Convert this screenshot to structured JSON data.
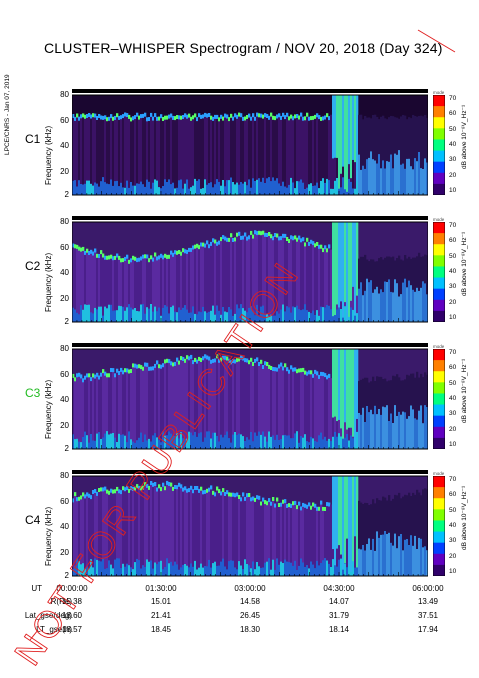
{
  "title": "CLUSTER–WHISPER Spectrogram / NOV 20, 2018 (Day 324)",
  "side_credit": "LPCE/CNRS - Jan 07, 2019",
  "watermark": "NOT FOR PUBLICATION",
  "colors": {
    "c3_label": "#22bb22",
    "watermark": "#e02020",
    "background": "#ffffff"
  },
  "chart_data": {
    "type": "heatmap",
    "panels": [
      {
        "spacecraft": "C1",
        "ylabel": "Frequency (kHz)",
        "yticks": [
          "80",
          "60",
          "40",
          "20",
          "2"
        ],
        "ylim": [
          2,
          80
        ]
      },
      {
        "spacecraft": "C2",
        "ylabel": "Frequency (kHz)",
        "yticks": [
          "80",
          "60",
          "40",
          "20",
          "2"
        ],
        "ylim": [
          2,
          80
        ]
      },
      {
        "spacecraft": "C3",
        "ylabel": "Frequency (kHz)",
        "yticks": [
          "80",
          "60",
          "40",
          "20",
          "2"
        ],
        "ylim": [
          2,
          80
        ]
      },
      {
        "spacecraft": "C4",
        "ylabel": "Frequency (kHz)",
        "yticks": [
          "80",
          "60",
          "40",
          "20",
          "2"
        ],
        "ylim": [
          2,
          80
        ]
      }
    ],
    "colorbar": {
      "label": "dB above 10⁻⁸V_Hz⁻¹",
      "ticks": [
        "70",
        "60",
        "50",
        "40",
        "30",
        "20",
        "10"
      ],
      "range": [
        10,
        70
      ],
      "top_label": "mode"
    },
    "x_axis": {
      "row_label": "UT",
      "ticks": [
        "00:00:00",
        "01:30:00",
        "03:00:00",
        "04:30:00",
        "06:00:00"
      ],
      "range": [
        "00:00:00",
        "06:00:00"
      ]
    },
    "ephemeris": [
      {
        "label": "R(Re)",
        "values": [
          "15.38",
          "15.01",
          "14.58",
          "14.07",
          "13.49"
        ]
      },
      {
        "label": "Lat_gse(deg)",
        "values": [
          "18.60",
          "21.41",
          "26.45",
          "31.79",
          "37.51"
        ]
      },
      {
        "label": "LT_gse(h)",
        "values": [
          "18.57",
          "18.45",
          "18.30",
          "18.14",
          "17.94"
        ]
      }
    ]
  }
}
